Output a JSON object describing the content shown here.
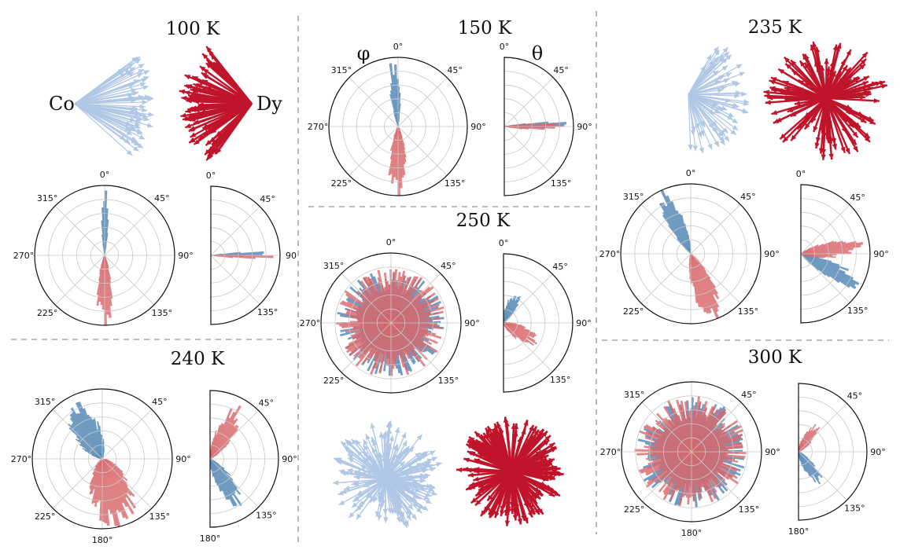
{
  "colors": {
    "co_bar": "#5b8db8",
    "dy_bar": "#d9686b",
    "co_arrow": "#b0c7e6",
    "dy_arrow": "#c0142a",
    "grid": "#c8c8c8",
    "separator": "#a9a9a9"
  },
  "species": {
    "co": "Co",
    "dy": "Dy"
  },
  "polar_labels": {
    "phi": "φ",
    "theta": "θ"
  },
  "ticks": {
    "full": [
      "0°",
      "45°",
      "90°",
      "135°",
      "180°",
      "225°",
      "270°",
      "315°"
    ],
    "half": [
      "0°",
      "45°",
      "90°",
      "135°",
      "180°"
    ]
  },
  "panels": [
    {
      "id": "100K",
      "title": "100 K",
      "arrows": "line",
      "full_ticks": [
        "0°",
        "45°",
        "90°",
        "135°",
        "",
        "225°",
        "270°",
        "315°"
      ],
      "half_ticks": [
        "0°",
        "45°",
        "90",
        "135°",
        ""
      ],
      "co": {
        "phi": 0,
        "phi_width": 10,
        "phi_len": 0.92,
        "theta": 88,
        "theta_width": 6,
        "theta_len": 0.95
      },
      "dy": {
        "phi": 180,
        "phi_width": 20,
        "phi_len": 0.9,
        "theta": 92,
        "theta_width": 6,
        "theta_len": 0.85
      }
    },
    {
      "id": "150K",
      "title": "150 K",
      "arrows": "none",
      "full_ticks": [
        "0°",
        "45°",
        "90°",
        "135°",
        "",
        "225°",
        "270°",
        "315°"
      ],
      "half_ticks": [
        "0°",
        "45°",
        "90°",
        "135°",
        ""
      ],
      "co": {
        "phi": 355,
        "phi_width": 14,
        "phi_len": 0.93,
        "theta": 88,
        "theta_width": 8,
        "theta_len": 0.9
      },
      "dy": {
        "phi": 180,
        "phi_width": 24,
        "phi_len": 0.9,
        "theta": 90,
        "theta_width": 10,
        "theta_len": 0.8
      }
    },
    {
      "id": "235K",
      "title": "235 K",
      "arrows": "tilted",
      "full_ticks": [
        "0°",
        "45°",
        "90°",
        "135°",
        "",
        "225°",
        "270°",
        "315°"
      ],
      "half_ticks": [
        "0°",
        "45°",
        "90°",
        "135°",
        ""
      ],
      "co": {
        "phi": 335,
        "phi_width": 22,
        "phi_len": 0.95,
        "theta": 118,
        "theta_width": 22,
        "theta_len": 0.9
      },
      "dy": {
        "phi": 160,
        "phi_width": 30,
        "phi_len": 0.93,
        "theta": 82,
        "theta_width": 26,
        "theta_len": 0.8
      }
    },
    {
      "id": "240K",
      "title": "240 K",
      "arrows": "none",
      "full_ticks": [
        "",
        "45°",
        "90°",
        "135°",
        "180°",
        "225°",
        "270°",
        "315°"
      ],
      "half_ticks": [
        "",
        "45°",
        "90°",
        "135°",
        "180°"
      ],
      "co": {
        "phi": 330,
        "phi_width": 44,
        "phi_len": 0.82,
        "theta": 148,
        "theta_width": 30,
        "theta_len": 0.78
      },
      "dy": {
        "phi": 165,
        "phi_width": 60,
        "phi_len": 0.9,
        "theta": 30,
        "theta_width": 30,
        "theta_len": 0.78
      }
    },
    {
      "id": "250K",
      "title": "250 K",
      "arrows": "sphere",
      "full_ticks": [
        "0°",
        "45°",
        "90°",
        "135°",
        "",
        "225°",
        "270°",
        "315°"
      ],
      "half_ticks": [
        "0°",
        "45°",
        "90°",
        "135°",
        ""
      ],
      "co": {
        "phi": 0,
        "phi_width": 360,
        "phi_len": 0.78,
        "theta": 25,
        "theta_width": 30,
        "theta_len": 0.45
      },
      "dy": {
        "phi": 0,
        "phi_width": 360,
        "phi_len": 0.8,
        "theta": 120,
        "theta_width": 38,
        "theta_len": 0.5
      }
    },
    {
      "id": "300K",
      "title": "300 K",
      "arrows": "none",
      "full_ticks": [
        "",
        "45°",
        "90°",
        "135°",
        "180°",
        "225°",
        "270°",
        "315°"
      ],
      "half_ticks": [
        "",
        "45°",
        "90°",
        "135°",
        "180°"
      ],
      "co": {
        "phi": 0,
        "phi_width": 360,
        "phi_len": 0.8,
        "theta": 145,
        "theta_width": 30,
        "theta_len": 0.5
      },
      "dy": {
        "phi": 0,
        "phi_width": 360,
        "phi_len": 0.82,
        "theta": 35,
        "theta_width": 30,
        "theta_len": 0.45
      }
    }
  ]
}
